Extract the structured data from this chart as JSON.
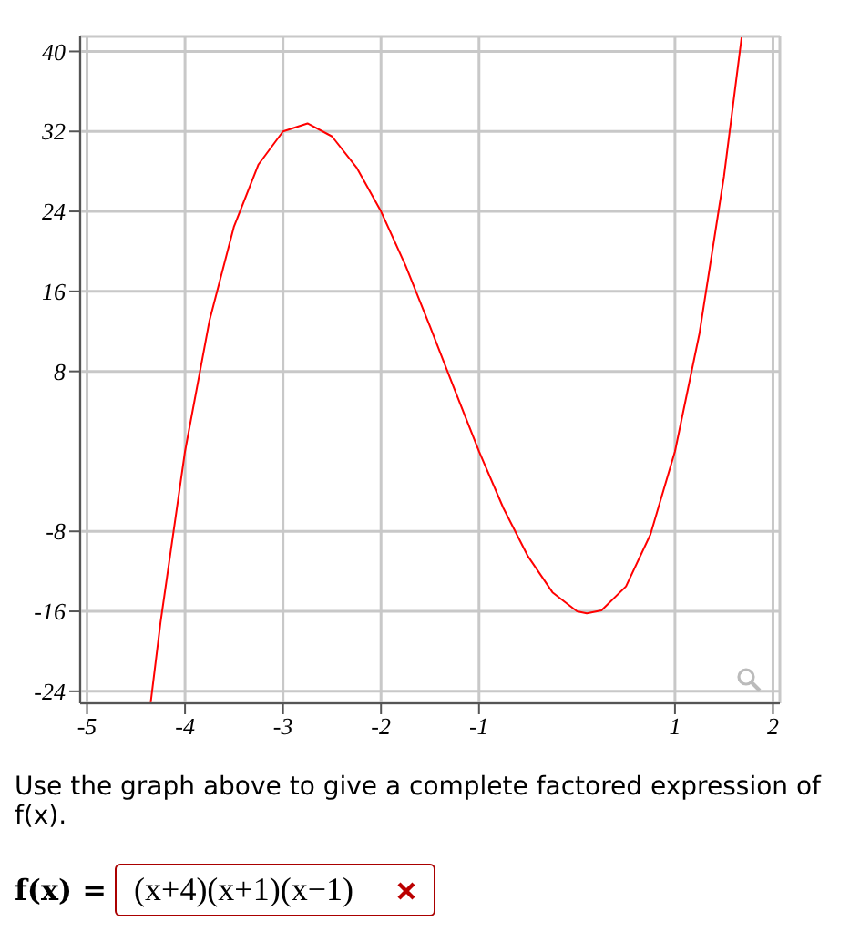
{
  "chart_data": {
    "type": "line",
    "x": [
      -4.35,
      -4.25,
      -4,
      -3.75,
      -3.5,
      -3.25,
      -3,
      -2.75,
      -2.5,
      -2.25,
      -2,
      -1.75,
      -1.5,
      -1.25,
      -1,
      -0.75,
      -0.5,
      -0.25,
      0,
      0.1,
      0.25,
      0.5,
      0.75,
      1,
      1.25,
      1.5,
      1.68
    ],
    "series": [
      {
        "color": "#ff0000",
        "values": [
          -25.1,
          -17.1,
          0,
          13.1,
          22.5,
          28.7,
          32,
          32.8,
          31.5,
          28.4,
          24,
          18.6,
          12.5,
          6.2,
          0,
          -5.7,
          -10.5,
          -14.1,
          -16,
          -16.2,
          -15.9,
          -13.5,
          -8.3,
          0,
          11.8,
          27.5,
          41.4
        ]
      }
    ],
    "xlim": [
      -5.07,
      2.07
    ],
    "xticks": [
      -5,
      -4,
      -3,
      -2,
      -1,
      1,
      2
    ],
    "ylim": [
      -25.2,
      41.5
    ],
    "yticks": [
      -24,
      -16,
      -8,
      8,
      16,
      24,
      32,
      40
    ],
    "grid": true,
    "marker": "none",
    "line_style": "solid",
    "annotations": [
      "Use the graph above to give a complete factored expression of f(x).",
      "f(x) =",
      "(x+4)(x+1)(x−1)"
    ]
  }
}
